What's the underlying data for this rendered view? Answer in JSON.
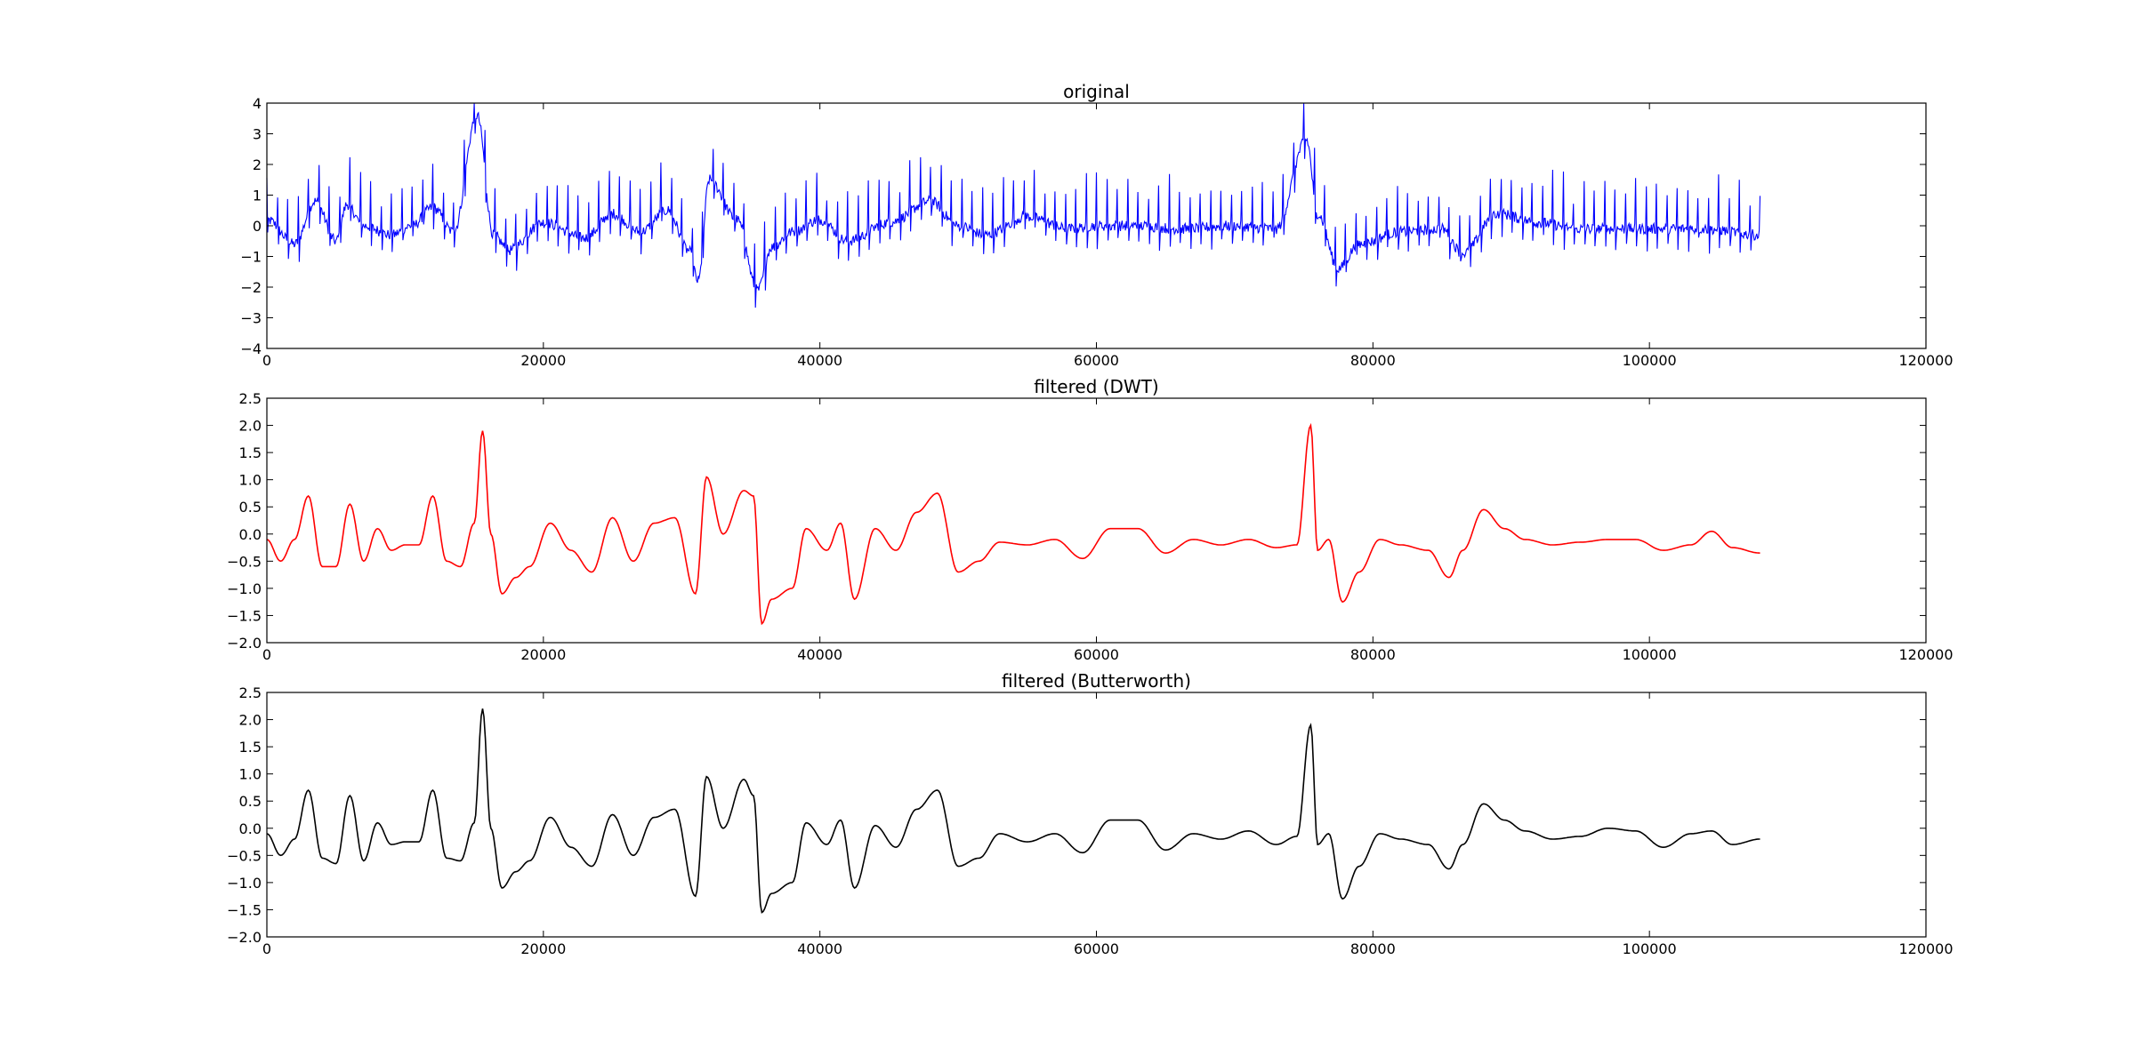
{
  "chart_data": [
    {
      "type": "line",
      "title": "original",
      "xlabel": "",
      "ylabel": "",
      "xlim": [
        0,
        120000
      ],
      "ylim": [
        -4,
        4
      ],
      "x_ticks": [
        "0",
        "20000",
        "40000",
        "60000",
        "80000",
        "100000",
        "120000"
      ],
      "y_ticks": [
        "−4",
        "−3",
        "−2",
        "−1",
        "0",
        "1",
        "2",
        "3",
        "4"
      ],
      "grid": false,
      "series": [
        {
          "color": "#0000ff",
          "x": [
            0,
            2000,
            3500,
            5000,
            5800,
            7000,
            9000,
            10500,
            12000,
            13500,
            15200,
            16400,
            17500,
            20000,
            23000,
            25000,
            27000,
            29000,
            30500,
            31200,
            32000,
            34000,
            35500,
            36500,
            38000,
            40000,
            42000,
            45000,
            48000,
            50000,
            52000,
            55000,
            58000,
            60000,
            63000,
            66000,
            70000,
            73000,
            75200,
            76000,
            77500,
            79000,
            82000,
            85000,
            86500,
            89000,
            92000,
            95000,
            100000,
            104000,
            108000
          ],
          "y": [
            0.2,
            -0.6,
            0.8,
            -0.5,
            0.7,
            0.0,
            -0.3,
            0.0,
            0.6,
            -0.2,
            3.6,
            -0.3,
            -0.8,
            0.1,
            -0.4,
            0.4,
            -0.2,
            0.5,
            -0.8,
            -1.8,
            1.5,
            0.2,
            -2.1,
            -0.7,
            -0.2,
            0.2,
            -0.5,
            0.1,
            0.8,
            0.0,
            -0.3,
            0.3,
            -0.1,
            0.0,
            0.0,
            -0.1,
            0.0,
            -0.1,
            2.8,
            0.4,
            -1.4,
            -0.6,
            -0.2,
            -0.1,
            -0.9,
            0.4,
            0.1,
            -0.1,
            -0.1,
            -0.1,
            -0.3
          ]
        }
      ]
    },
    {
      "type": "line",
      "title": "filtered (DWT)",
      "xlabel": "",
      "ylabel": "",
      "xlim": [
        0,
        120000
      ],
      "ylim": [
        -2.0,
        2.5
      ],
      "x_ticks": [
        "0",
        "20000",
        "40000",
        "60000",
        "80000",
        "100000",
        "120000"
      ],
      "y_ticks": [
        "−2.0",
        "−1.5",
        "−1.0",
        "−0.5",
        "0.0",
        "0.5",
        "1.0",
        "1.5",
        "2.0",
        "2.5"
      ],
      "grid": false,
      "series": [
        {
          "color": "#ff0000",
          "x": [
            0,
            1000,
            2000,
            3000,
            4000,
            5000,
            6000,
            7000,
            8000,
            9000,
            10000,
            11000,
            12000,
            13000,
            14000,
            15000,
            15600,
            16200,
            17000,
            18000,
            19000,
            20500,
            22000,
            23500,
            25000,
            26500,
            28000,
            29500,
            31000,
            31800,
            33000,
            34500,
            35200,
            35800,
            36500,
            38000,
            39000,
            40500,
            41500,
            42500,
            44000,
            45500,
            47000,
            48500,
            50000,
            51500,
            53000,
            55000,
            57000,
            59000,
            61000,
            63000,
            65000,
            67000,
            69000,
            71000,
            73000,
            74500,
            75500,
            76000,
            76800,
            77800,
            79000,
            80500,
            82000,
            84000,
            85500,
            86500,
            88000,
            89500,
            91000,
            93000,
            95000,
            97000,
            99000,
            101000,
            103000,
            104500,
            106000,
            108000
          ],
          "y": [
            -0.1,
            -0.5,
            -0.1,
            0.7,
            -0.6,
            -0.6,
            0.55,
            -0.5,
            0.1,
            -0.3,
            -0.2,
            -0.2,
            0.7,
            -0.5,
            -0.6,
            0.2,
            1.9,
            0.0,
            -1.1,
            -0.8,
            -0.6,
            0.2,
            -0.3,
            -0.7,
            0.3,
            -0.5,
            0.2,
            0.3,
            -1.1,
            1.05,
            0.0,
            0.8,
            0.7,
            -1.65,
            -1.2,
            -1.0,
            0.1,
            -0.3,
            0.2,
            -1.2,
            0.1,
            -0.3,
            0.4,
            0.75,
            -0.7,
            -0.5,
            -0.15,
            -0.2,
            -0.1,
            -0.45,
            0.1,
            0.1,
            -0.35,
            -0.1,
            -0.2,
            -0.1,
            -0.25,
            -0.2,
            2.0,
            -0.3,
            -0.1,
            -1.25,
            -0.7,
            -0.1,
            -0.2,
            -0.3,
            -0.8,
            -0.3,
            0.45,
            0.1,
            -0.1,
            -0.2,
            -0.15,
            -0.1,
            -0.1,
            -0.3,
            -0.2,
            0.05,
            -0.25,
            -0.35
          ]
        }
      ]
    },
    {
      "type": "line",
      "title": "filtered (Butterworth)",
      "xlabel": "",
      "ylabel": "",
      "xlim": [
        0,
        120000
      ],
      "ylim": [
        -2.0,
        2.5
      ],
      "x_ticks": [
        "0",
        "20000",
        "40000",
        "60000",
        "80000",
        "100000",
        "120000"
      ],
      "y_ticks": [
        "−2.0",
        "−1.5",
        "−1.0",
        "−0.5",
        "0.0",
        "0.5",
        "1.0",
        "1.5",
        "2.0",
        "2.5"
      ],
      "grid": false,
      "series": [
        {
          "color": "#000000",
          "x": [
            0,
            1000,
            2000,
            3000,
            4000,
            5000,
            6000,
            7000,
            8000,
            9000,
            10000,
            11000,
            12000,
            13000,
            14000,
            15000,
            15600,
            16200,
            17000,
            18000,
            19000,
            20500,
            22000,
            23500,
            25000,
            26500,
            28000,
            29500,
            31000,
            31800,
            33000,
            34500,
            35200,
            35800,
            36500,
            38000,
            39000,
            40500,
            41500,
            42500,
            44000,
            45500,
            47000,
            48500,
            50000,
            51500,
            53000,
            55000,
            57000,
            59000,
            61000,
            63000,
            65000,
            67000,
            69000,
            71000,
            73000,
            74500,
            75500,
            76000,
            76800,
            77800,
            79000,
            80500,
            82000,
            84000,
            85500,
            86500,
            88000,
            89500,
            91000,
            93000,
            95000,
            97000,
            99000,
            101000,
            103000,
            104500,
            106000,
            108000
          ],
          "y": [
            -0.1,
            -0.5,
            -0.2,
            0.7,
            -0.55,
            -0.65,
            0.6,
            -0.6,
            0.1,
            -0.3,
            -0.25,
            -0.25,
            0.7,
            -0.55,
            -0.6,
            0.1,
            2.2,
            0.0,
            -1.1,
            -0.8,
            -0.6,
            0.2,
            -0.35,
            -0.7,
            0.25,
            -0.5,
            0.2,
            0.35,
            -1.25,
            0.95,
            0.0,
            0.9,
            0.6,
            -1.55,
            -1.2,
            -1.0,
            0.1,
            -0.3,
            0.15,
            -1.1,
            0.05,
            -0.35,
            0.35,
            0.7,
            -0.7,
            -0.55,
            -0.1,
            -0.25,
            -0.1,
            -0.45,
            0.15,
            0.15,
            -0.4,
            -0.1,
            -0.2,
            -0.05,
            -0.3,
            -0.15,
            1.9,
            -0.3,
            -0.1,
            -1.3,
            -0.7,
            -0.1,
            -0.2,
            -0.3,
            -0.75,
            -0.3,
            0.45,
            0.15,
            -0.05,
            -0.2,
            -0.15,
            0.0,
            -0.05,
            -0.35,
            -0.1,
            -0.05,
            -0.3,
            -0.2
          ]
        }
      ]
    }
  ]
}
